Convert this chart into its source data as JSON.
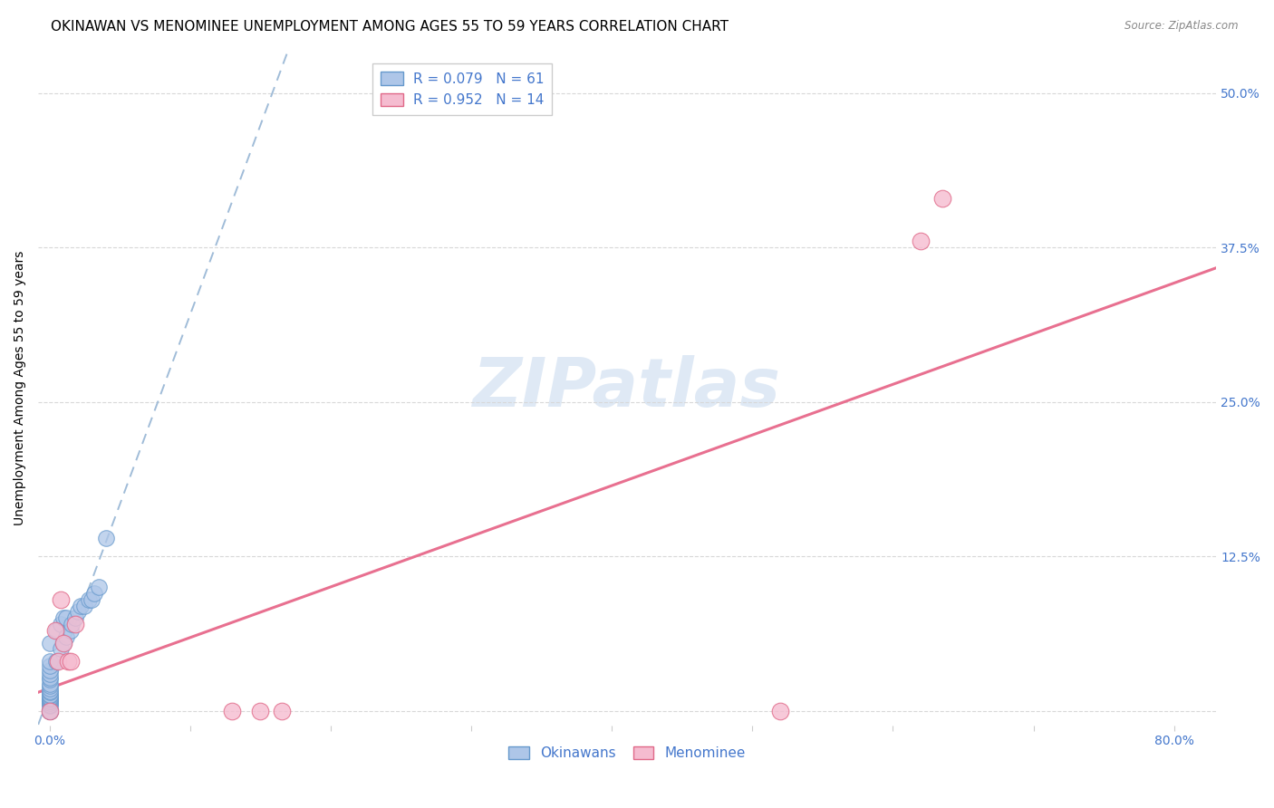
{
  "title": "OKINAWAN VS MENOMINEE UNEMPLOYMENT AMONG AGES 55 TO 59 YEARS CORRELATION CHART",
  "source": "Source: ZipAtlas.com",
  "ylabel_label": "Unemployment Among Ages 55 to 59 years",
  "xlim": [
    -0.008,
    0.83
  ],
  "ylim": [
    -0.012,
    0.535
  ],
  "watermark": "ZIPatlas",
  "legend_r1": "0.079",
  "legend_n1": "61",
  "legend_r2": "0.952",
  "legend_n2": "14",
  "legend_label1": "Okinawans",
  "legend_label2": "Menominee",
  "okinawan_color": "#aec6e8",
  "okinawan_edge": "#6699cc",
  "menominee_color": "#f5bcd0",
  "menominee_edge": "#e06888",
  "blue_line_color": "#a0bcd8",
  "pink_line_color": "#e87090",
  "grid_color": "#d8d8d8",
  "title_fontsize": 11,
  "axis_label_fontsize": 10,
  "tick_label_fontsize": 10,
  "tick_color": "#4477cc",
  "okinawan_x": [
    0.0,
    0.0,
    0.0,
    0.0,
    0.0,
    0.0,
    0.0,
    0.0,
    0.0,
    0.0,
    0.0,
    0.0,
    0.0,
    0.0,
    0.0,
    0.0,
    0.0,
    0.0,
    0.0,
    0.0,
    0.0,
    0.0,
    0.0,
    0.0,
    0.0,
    0.0,
    0.0,
    0.0,
    0.0,
    0.0,
    0.0,
    0.0,
    0.0,
    0.0,
    0.0,
    0.0,
    0.0,
    0.0,
    0.0,
    0.0,
    0.0,
    0.0,
    0.005,
    0.005,
    0.008,
    0.008,
    0.01,
    0.01,
    0.012,
    0.012,
    0.015,
    0.016,
    0.018,
    0.02,
    0.022,
    0.025,
    0.028,
    0.03,
    0.032,
    0.035,
    0.04
  ],
  "okinawan_y": [
    0.0,
    0.0,
    0.0,
    0.0,
    0.0,
    0.0,
    0.0,
    0.0,
    0.0,
    0.0,
    0.0,
    0.0,
    0.0,
    0.0,
    0.0,
    0.0,
    0.0,
    0.0,
    0.0,
    0.0,
    0.004,
    0.005,
    0.006,
    0.008,
    0.008,
    0.009,
    0.01,
    0.011,
    0.012,
    0.013,
    0.015,
    0.016,
    0.018,
    0.02,
    0.022,
    0.025,
    0.027,
    0.03,
    0.033,
    0.036,
    0.04,
    0.055,
    0.04,
    0.065,
    0.05,
    0.07,
    0.055,
    0.075,
    0.06,
    0.075,
    0.065,
    0.07,
    0.075,
    0.08,
    0.085,
    0.085,
    0.09,
    0.09,
    0.095,
    0.1,
    0.14
  ],
  "menominee_x": [
    0.0,
    0.004,
    0.006,
    0.008,
    0.01,
    0.013,
    0.015,
    0.018,
    0.13,
    0.15,
    0.165,
    0.52,
    0.62,
    0.635
  ],
  "menominee_y": [
    0.0,
    0.065,
    0.04,
    0.09,
    0.055,
    0.04,
    0.04,
    0.07,
    0.0,
    0.0,
    0.0,
    0.0,
    0.38,
    0.415
  ],
  "ylabel_ticks": [
    0.0,
    0.125,
    0.25,
    0.375,
    0.5
  ],
  "ylabel_labels": [
    "",
    "12.5%",
    "25.0%",
    "37.5%",
    "50.0%"
  ],
  "xtick_positions": [
    0.0,
    0.1,
    0.2,
    0.3,
    0.4,
    0.5,
    0.6,
    0.7,
    0.8
  ],
  "xtick_labels": [
    "0.0%",
    "",
    "",
    "",
    "",
    "",
    "",
    "",
    "80.0%"
  ]
}
